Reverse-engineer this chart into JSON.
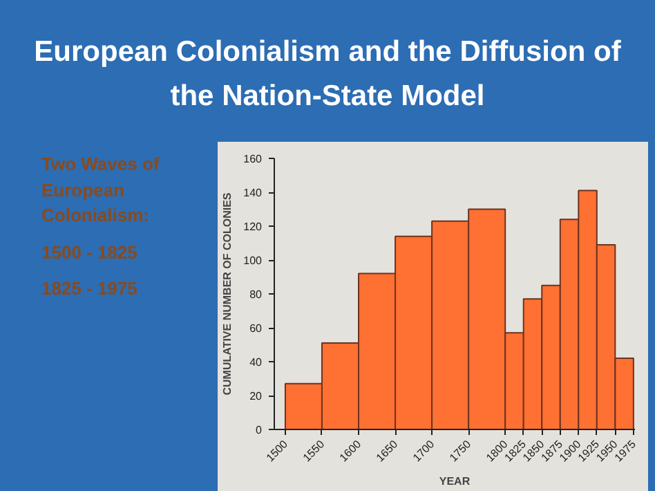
{
  "chart_data": {
    "type": "histogram",
    "title": "European Colonialism and the Diffusion of the Nation-State Model",
    "annotations": [
      "Two Waves of European Colonialism:",
      "1500 - 1825",
      "1825 - 1975"
    ],
    "xlabel": "YEAR",
    "ylabel": "CUMULATIVE NUMBER OF COLONIES",
    "bins": [
      1500,
      1550,
      1600,
      1650,
      1700,
      1750,
      1800,
      1825,
      1850,
      1875,
      1900,
      1925,
      1950,
      1975
    ],
    "xlim": [
      1485,
      1977
    ],
    "xticks": [
      1500,
      1550,
      1600,
      1650,
      1700,
      1750,
      1800,
      1825,
      1850,
      1875,
      1900,
      1925,
      1950,
      1975
    ],
    "values": [
      27,
      51,
      92,
      114,
      123,
      130,
      57,
      77,
      85,
      124,
      141,
      109,
      42
    ],
    "color": "#ff7033",
    "ylim": [
      0,
      160
    ],
    "yticks": [
      0,
      20,
      40,
      60,
      80,
      100,
      120,
      140,
      160
    ]
  }
}
